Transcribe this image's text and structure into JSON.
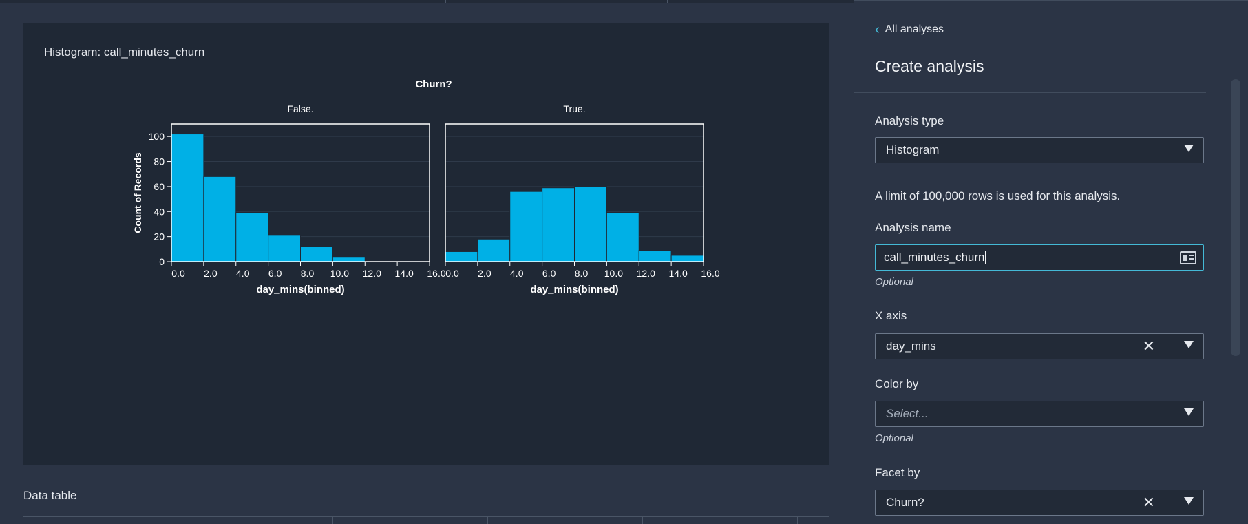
{
  "main": {
    "chart_title": "Histogram: call_minutes_churn",
    "data_table_label": "Data table"
  },
  "chart_data": {
    "type": "bar",
    "title": "Churn?",
    "ylabel": "Count of Records",
    "xlabel": "day_mins(binned)",
    "ylim": [
      0,
      110
    ],
    "y_ticks": [
      0,
      20,
      40,
      60,
      80,
      100
    ],
    "x_ticks": [
      "0.0",
      "2.0",
      "4.0",
      "6.0",
      "8.0",
      "10.0",
      "12.0",
      "14.0",
      "16.0"
    ],
    "bins": [
      0,
      2,
      4,
      6,
      8,
      10,
      12,
      14,
      16
    ],
    "facets": [
      {
        "name": "False.",
        "values": [
          102,
          68,
          39,
          21,
          12,
          4,
          0,
          0
        ]
      },
      {
        "name": "True.",
        "values": [
          8,
          18,
          56,
          59,
          60,
          39,
          9,
          5
        ]
      }
    ],
    "bar_color": "#00b0e6",
    "grid": true
  },
  "panel": {
    "back_label": "All analyses",
    "title": "Create analysis",
    "analysis_type_label": "Analysis type",
    "analysis_type_value": "Histogram",
    "limit_info": "A limit of 100,000 rows is used for this analysis.",
    "analysis_name_label": "Analysis name",
    "analysis_name_value": "call_minutes_churn",
    "analysis_name_optional": "Optional",
    "x_axis_label": "X axis",
    "x_axis_value": "day_mins",
    "color_by_label": "Color by",
    "color_by_placeholder": "Select...",
    "color_by_optional": "Optional",
    "facet_by_label": "Facet by",
    "facet_by_value": "Churn?"
  },
  "icons": {
    "back": "chevron-left-icon",
    "dropdown": "caret-down-icon",
    "clear": "close-icon",
    "input_card": "id-card-icon"
  }
}
